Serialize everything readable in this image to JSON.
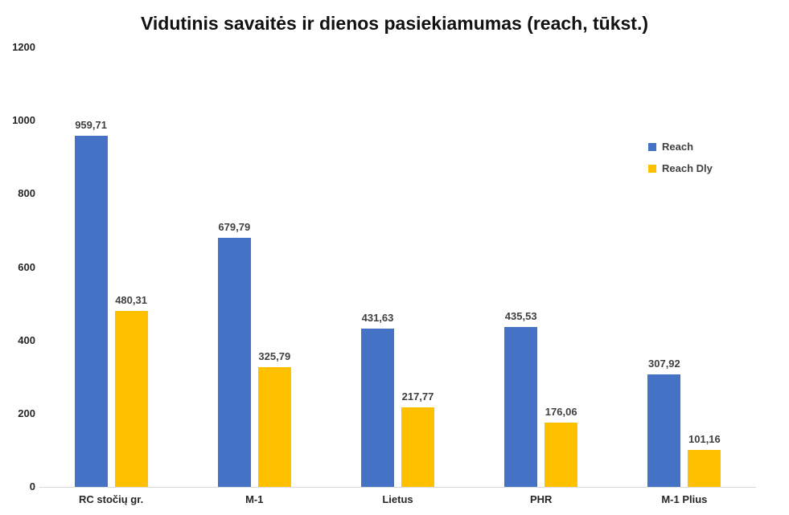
{
  "chart_data": {
    "type": "bar",
    "title": "Vidutinis savaitės ir dienos pasiekiamumas (reach, tūkst.)",
    "categories": [
      "RC stočių gr.",
      "M-1",
      "Lietus",
      "PHR",
      "M-1 Plius"
    ],
    "series": [
      {
        "name": "Reach",
        "color": "#4472C4",
        "values": [
          959.71,
          679.79,
          431.63,
          435.53,
          307.92
        ],
        "labels": [
          "959,71",
          "679,79",
          "431,63",
          "435,53",
          "307,92"
        ]
      },
      {
        "name": "Reach Dly",
        "color": "#FFC000",
        "values": [
          480.31,
          325.79,
          217.77,
          176.06,
          101.16
        ],
        "labels": [
          "480,31",
          "325,79",
          "217,77",
          "176,06",
          "101,16"
        ]
      }
    ],
    "ylim": [
      0,
      1200
    ],
    "yticks": [
      0,
      200,
      400,
      600,
      800,
      1000,
      1200
    ],
    "grid": false,
    "legend_position": "right",
    "axis_line_color": "#d9d9d9"
  }
}
